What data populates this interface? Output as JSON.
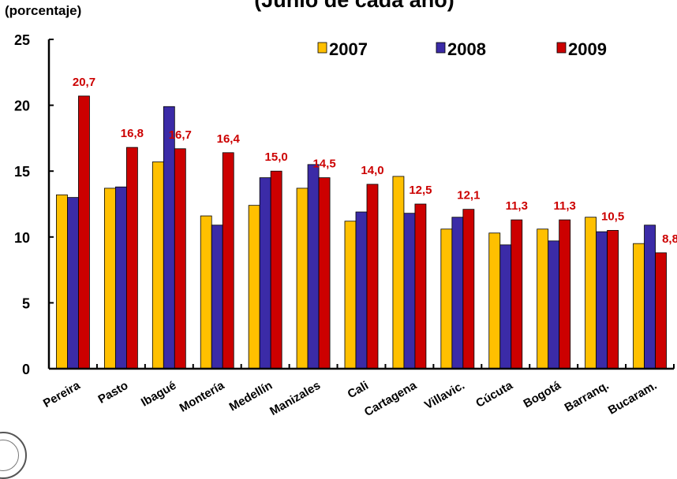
{
  "chart_data": {
    "type": "bar",
    "title": "(Junio de cada año)",
    "ylabel": "(porcentaje)",
    "ylim": [
      0,
      25
    ],
    "yticks": [
      0,
      5,
      10,
      15,
      20,
      25
    ],
    "grid": false,
    "legend_position": "top-right",
    "categories": [
      "Pereira",
      "Pasto",
      "Ibagué",
      "Montería",
      "Medellín",
      "Manizales",
      "Cali",
      "Cartagena",
      "Villavic.",
      "Cúcuta",
      "Bogotá",
      "Barranq.",
      "Bucaram."
    ],
    "series": [
      {
        "name": "2007",
        "color": "#FFC000",
        "values": [
          13.2,
          13.7,
          15.7,
          11.6,
          12.4,
          13.7,
          11.2,
          14.6,
          10.6,
          10.3,
          10.6,
          11.5,
          9.5
        ]
      },
      {
        "name": "2008",
        "color": "#3B2BA7",
        "values": [
          13.0,
          13.8,
          19.9,
          10.9,
          14.5,
          15.5,
          11.9,
          11.8,
          11.5,
          9.4,
          9.7,
          10.4,
          10.9
        ]
      },
      {
        "name": "2009",
        "color": "#CC0000",
        "values": [
          20.7,
          16.8,
          16.7,
          16.4,
          15.0,
          14.5,
          14.0,
          12.5,
          12.1,
          11.3,
          11.3,
          10.5,
          8.8
        ]
      }
    ],
    "data_labels": [
      "20,7",
      "16,8",
      "16,7",
      "16,4",
      "15,0",
      "14,5",
      "14,0",
      "12,5",
      "12,1",
      "11,3",
      "11,3",
      "10,5",
      "8,8"
    ],
    "label_color": "#CC0000"
  }
}
